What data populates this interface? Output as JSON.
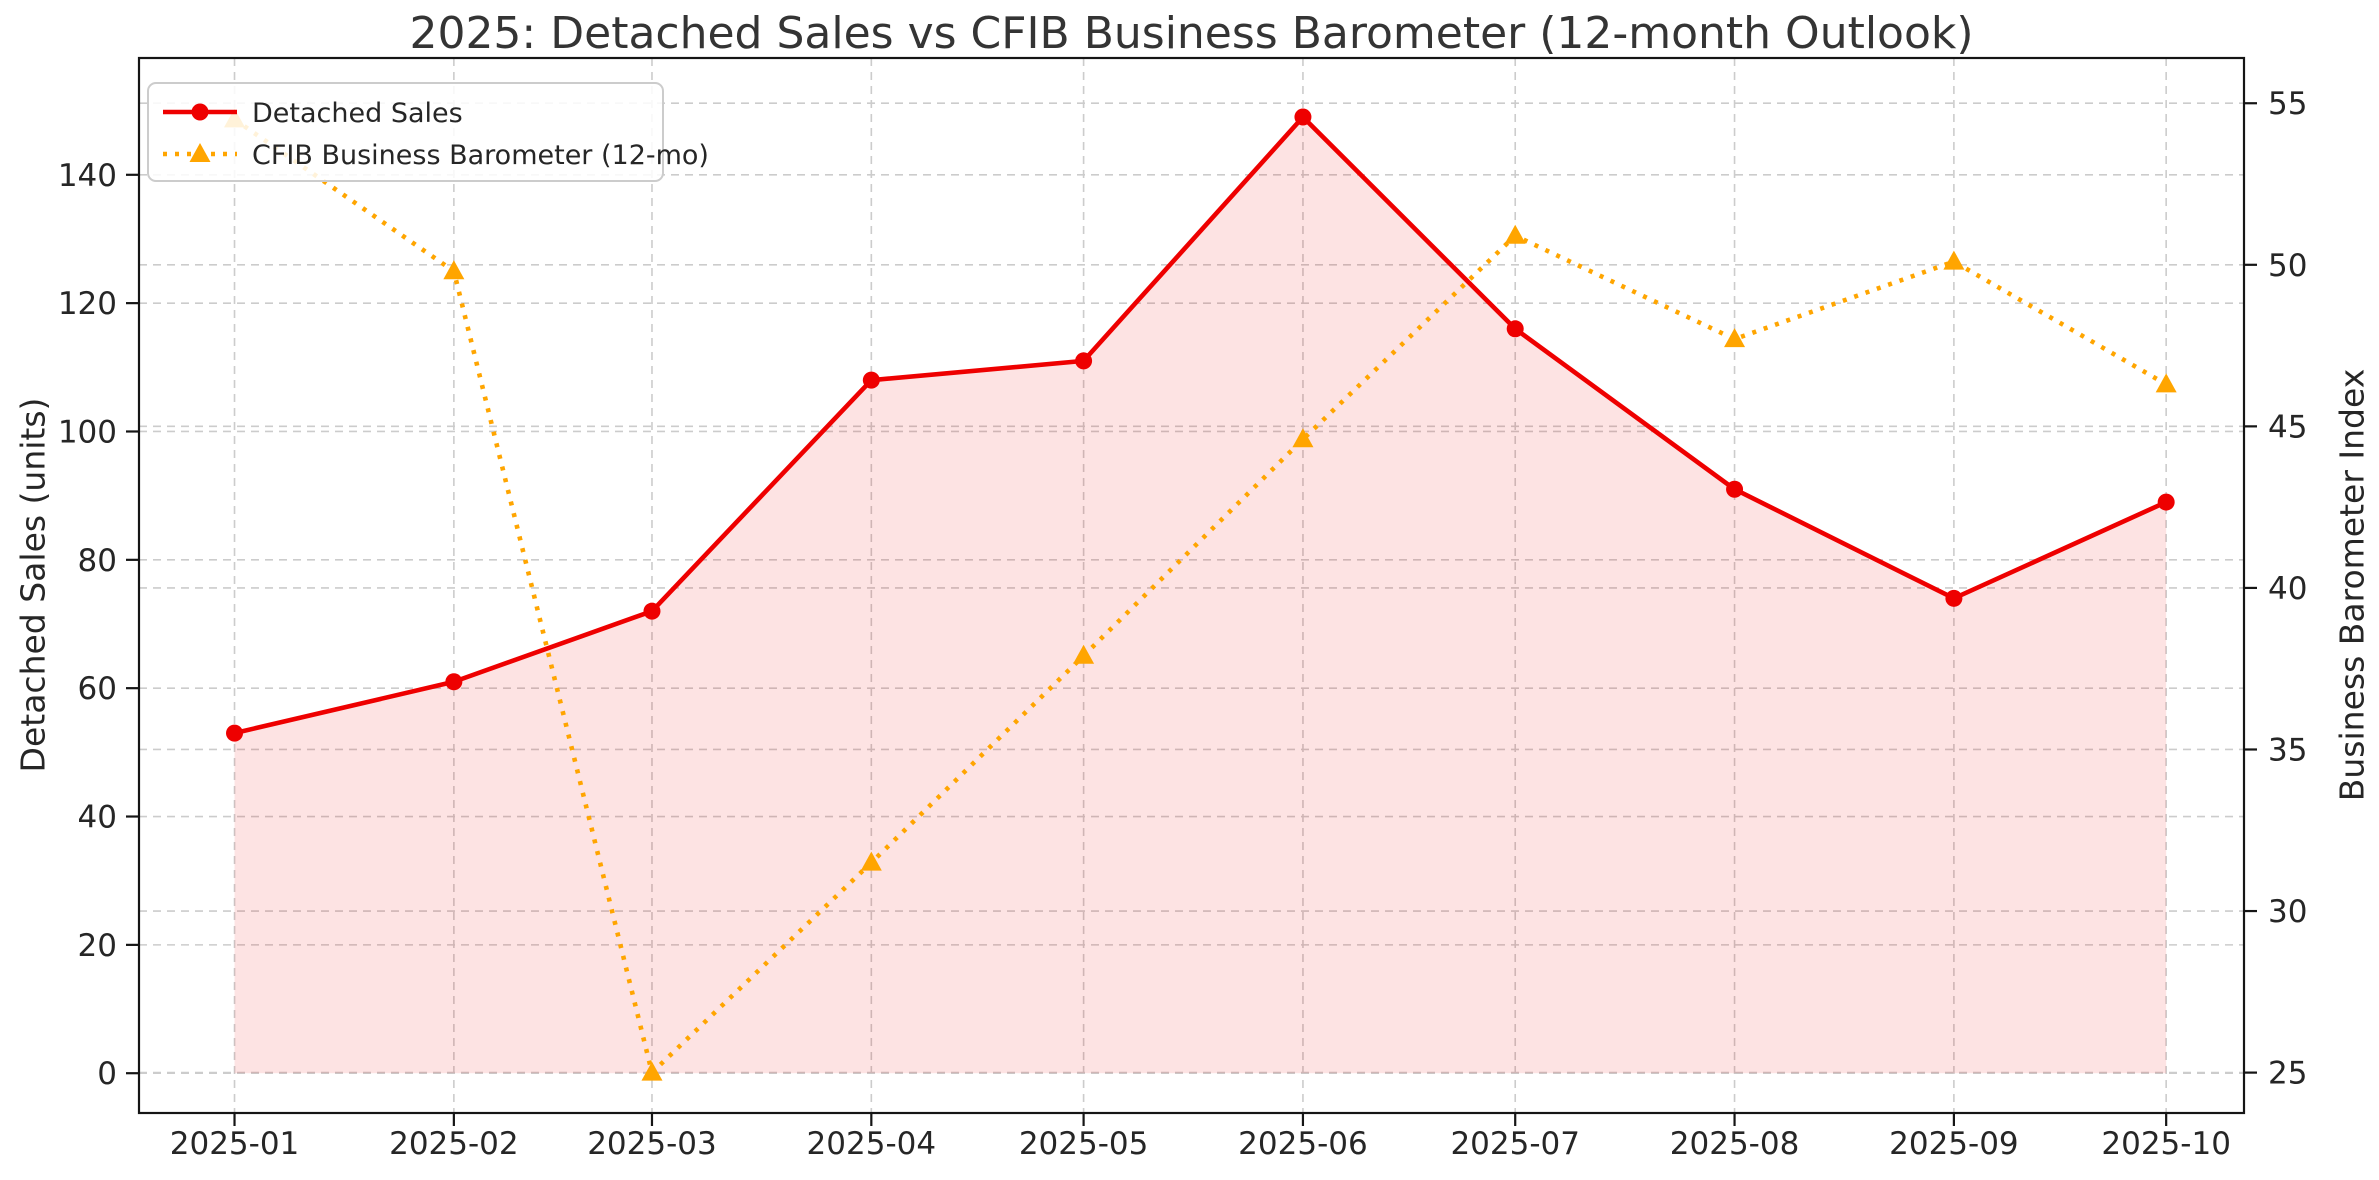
{
  "chart_data": {
    "type": "line",
    "title": "2025: Detached Sales vs CFIB Business Barometer (12-month Outlook)",
    "categories": [
      "2025-01",
      "2025-02",
      "2025-03",
      "2025-04",
      "2025-05",
      "2025-06",
      "2025-07",
      "2025-08",
      "2025-09",
      "2025-10"
    ],
    "series": [
      {
        "name": "Detached Sales",
        "axis": "left",
        "color": "#ee0000",
        "marker": "circle",
        "line_style": "solid",
        "fill_under": true,
        "fill_color": "rgba(238,0,0,0.11)",
        "values": [
          53,
          61,
          72,
          108,
          111,
          149,
          116,
          91,
          74,
          89
        ]
      },
      {
        "name": "CFIB Business Barometer (12-mo)",
        "axis": "right",
        "color": "#ffa500",
        "marker": "triangle",
        "line_style": "dotted",
        "fill_under": false,
        "values": [
          54.5,
          49.8,
          25.0,
          31.5,
          37.9,
          44.6,
          50.9,
          47.7,
          50.1,
          46.3
        ]
      }
    ],
    "left_axis": {
      "label": "Detached Sales (units)",
      "ticks": [
        0,
        20,
        40,
        60,
        80,
        100,
        120,
        140
      ],
      "range": [
        -6.2,
        158.2
      ]
    },
    "right_axis": {
      "label": "Business Barometer Index",
      "ticks": [
        25,
        30,
        35,
        40,
        45,
        50,
        55
      ],
      "range": [
        23.75,
        56.4
      ]
    },
    "x_axis": {
      "day_offsets": [
        0,
        31,
        59,
        90,
        120,
        151,
        181,
        212,
        243,
        273
      ],
      "range_days": [
        -13.5,
        284
      ]
    },
    "legend": {
      "position": "upper-left",
      "entries": [
        "Detached Sales",
        "CFIB Business Barometer (12-mo)"
      ]
    },
    "grid": {
      "on": true,
      "color": "#cccccc",
      "dash": "dashed"
    }
  }
}
